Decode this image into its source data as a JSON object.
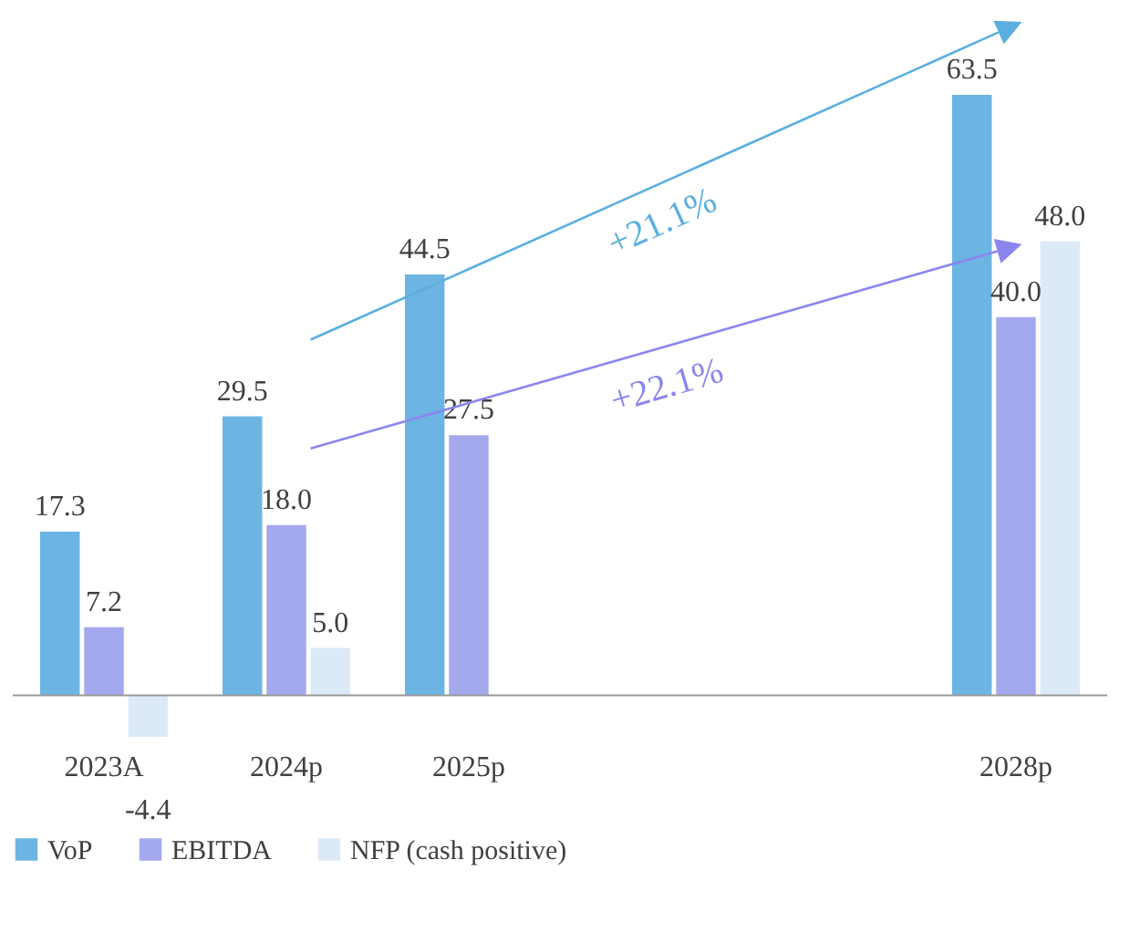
{
  "chart_data": {
    "type": "bar",
    "categories": [
      "2023A",
      "2024p",
      "2025p",
      null,
      null,
      "2028p"
    ],
    "series": [
      {
        "name": "VoP",
        "color": "#6cb4e2",
        "values": [
          17.3,
          29.5,
          44.5,
          null,
          null,
          63.5
        ],
        "value_labels": [
          "17.3",
          "29.5",
          "44.5",
          null,
          null,
          "63.5"
        ]
      },
      {
        "name": "EBITDA",
        "color": "#a4a9ee",
        "values": [
          7.2,
          18.0,
          27.5,
          null,
          null,
          40.0
        ],
        "value_labels": [
          "7.2",
          "18.0",
          "27.5",
          null,
          null,
          "40.0"
        ]
      },
      {
        "name": "NFP (cash positive)",
        "color": "#dceaf8",
        "values": [
          -4.4,
          5.0,
          null,
          null,
          null,
          48.0
        ],
        "value_labels": [
          "-4.4",
          "5.0",
          null,
          null,
          null,
          "48.0"
        ]
      }
    ],
    "annotations": [
      "+21.1%",
      "+22.1%"
    ],
    "legend": "bottom"
  }
}
